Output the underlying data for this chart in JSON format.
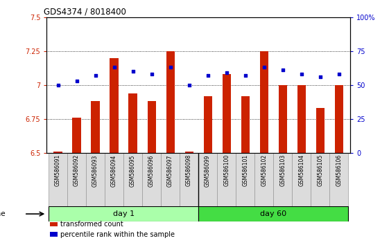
{
  "title": "GDS4374 / 8018400",
  "samples": [
    "GSM586091",
    "GSM586092",
    "GSM586093",
    "GSM586094",
    "GSM586095",
    "GSM586096",
    "GSM586097",
    "GSM586098",
    "GSM586099",
    "GSM586100",
    "GSM586101",
    "GSM586102",
    "GSM586103",
    "GSM586104",
    "GSM586105",
    "GSM586106"
  ],
  "bar_values": [
    6.51,
    6.76,
    6.88,
    7.2,
    6.94,
    6.88,
    7.25,
    6.51,
    6.92,
    7.08,
    6.92,
    7.25,
    7.0,
    7.0,
    6.83,
    7.0
  ],
  "percentile_values": [
    50,
    53,
    57,
    63,
    60,
    58,
    63,
    50,
    57,
    59,
    57,
    63,
    61,
    58,
    56,
    58
  ],
  "groups": [
    {
      "label": "day 1",
      "start": 0,
      "end": 8,
      "color": "#AAFFAA"
    },
    {
      "label": "day 60",
      "start": 8,
      "end": 16,
      "color": "#44DD44"
    }
  ],
  "ylim_left": [
    6.5,
    7.5
  ],
  "ylim_right": [
    0,
    100
  ],
  "yticks_left": [
    6.5,
    6.75,
    7.0,
    7.25,
    7.5
  ],
  "ytick_labels_left": [
    "6.5",
    "6.75",
    "7",
    "7.25",
    "7.5"
  ],
  "yticks_right": [
    0,
    25,
    50,
    75,
    100
  ],
  "ytick_labels_right": [
    "0",
    "25",
    "50",
    "75",
    "100%"
  ],
  "hlines": [
    6.75,
    7.0,
    7.25
  ],
  "bar_color": "#CC2200",
  "dot_color": "#0000CC",
  "bar_width": 0.45,
  "left_tick_color": "#CC2200",
  "right_tick_color": "#0000CC",
  "legend_items": [
    {
      "color": "#CC2200",
      "label": "transformed count"
    },
    {
      "color": "#0000CC",
      "label": "percentile rank within the sample"
    }
  ]
}
